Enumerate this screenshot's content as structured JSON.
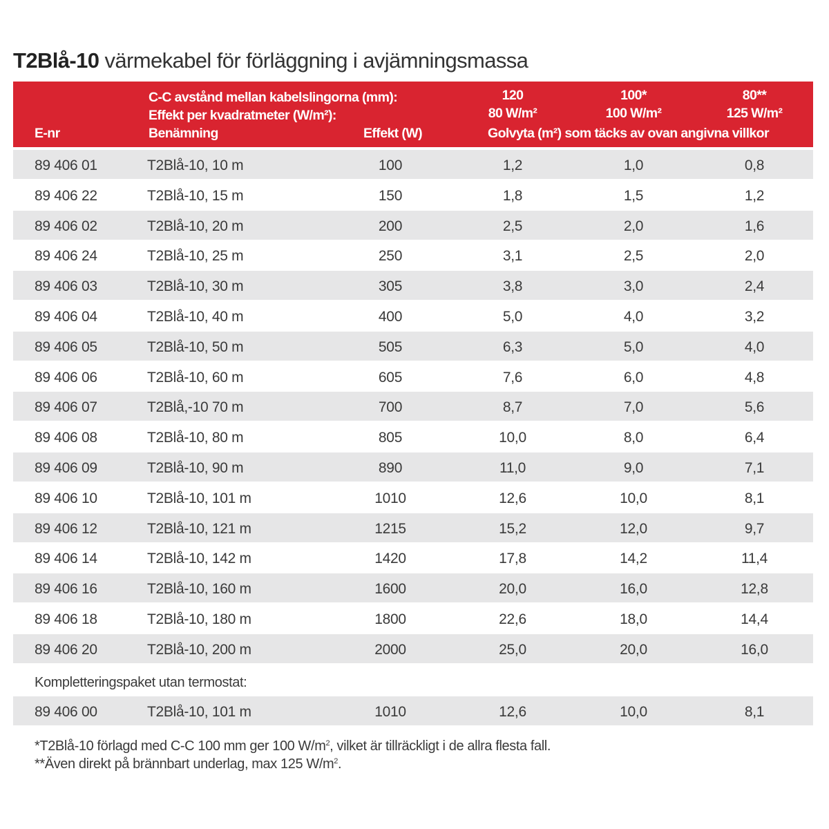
{
  "title": {
    "bold": "T2Blå-10",
    "rest": " värmekabel för förläggning i avjämningsmassa"
  },
  "colors": {
    "header_bg": "#d92430",
    "stripe": "#e6e6e7"
  },
  "header": {
    "enr": "E-nr",
    "cc_label": "C-C avstånd mellan kabelslingorna (mm):",
    "effekt_per_m2_label": "Effekt per kvadratmeter (W/m²):",
    "benamning": "Benämning",
    "effekt": "Effekt (W)",
    "columns": [
      {
        "cc": "120",
        "wm2": "80 W/m²"
      },
      {
        "cc": "100*",
        "wm2": "100 W/m²"
      },
      {
        "cc": "80**",
        "wm2": "125 W/m²"
      }
    ],
    "golvyta": "Golvyta (m²) som täcks av ovan angivna villkor"
  },
  "rows": [
    [
      "89 406 01",
      "T2Blå-10, 10 m",
      "100",
      "1,2",
      "1,0",
      "0,8"
    ],
    [
      "89 406 22",
      "T2Blå-10, 15 m",
      "150",
      "1,8",
      "1,5",
      "1,2"
    ],
    [
      "89 406 02",
      "T2Blå-10, 20 m",
      "200",
      "2,5",
      "2,0",
      "1,6"
    ],
    [
      "89 406 24",
      "T2Blå-10, 25 m",
      "250",
      "3,1",
      "2,5",
      "2,0"
    ],
    [
      "89 406 03",
      "T2Blå-10, 30 m",
      "305",
      "3,8",
      "3,0",
      "2,4"
    ],
    [
      "89 406 04",
      "T2Blå-10, 40 m",
      "400",
      "5,0",
      "4,0",
      "3,2"
    ],
    [
      "89 406 05",
      "T2Blå-10, 50 m",
      "505",
      "6,3",
      "5,0",
      "4,0"
    ],
    [
      "89 406 06",
      "T2Blå-10, 60 m",
      "605",
      "7,6",
      "6,0",
      "4,8"
    ],
    [
      "89 406 07",
      "T2Blå,-10 70 m",
      "700",
      "8,7",
      "7,0",
      "5,6"
    ],
    [
      "89 406 08",
      "T2Blå-10, 80 m",
      "805",
      "10,0",
      "8,0",
      "6,4"
    ],
    [
      "89 406 09",
      "T2Blå-10, 90 m",
      "890",
      "11,0",
      "9,0",
      "7,1"
    ],
    [
      "89 406 10",
      "T2Blå-10, 101 m",
      "1010",
      "12,6",
      "10,0",
      "8,1"
    ],
    [
      "89 406 12",
      "T2Blå-10, 121 m",
      "1215",
      "15,2",
      "12,0",
      "9,7"
    ],
    [
      "89 406 14",
      "T2Blå-10, 142 m",
      "1420",
      "17,8",
      "14,2",
      "11,4"
    ],
    [
      "89 406 16",
      "T2Blå-10, 160 m",
      "1600",
      "20,0",
      "16,0",
      "12,8"
    ],
    [
      "89 406 18",
      "T2Blå-10, 180 m",
      "1800",
      "22,6",
      "18,0",
      "14,4"
    ],
    [
      "89 406 20",
      "T2Blå-10, 200 m",
      "2000",
      "25,0",
      "20,0",
      "16,0"
    ]
  ],
  "supplement": {
    "label": "Kompletteringspaket utan termostat:",
    "rows": [
      [
        "89 406 00",
        "T2Blå-10, 101 m",
        "1010",
        "12,6",
        "10,0",
        "8,1"
      ]
    ]
  },
  "footnotes": {
    "note1_a": "*T2Blå-10 förlagd med C-C 100 mm ger 100 W/m",
    "note1_sup": "2",
    "note1_b": ", vilket är tillräckligt i de allra flesta fall.",
    "note2_a": "**Även direkt på brännbart underlag, max 125 W/m",
    "note2_sup": "2",
    "note2_b": "."
  }
}
